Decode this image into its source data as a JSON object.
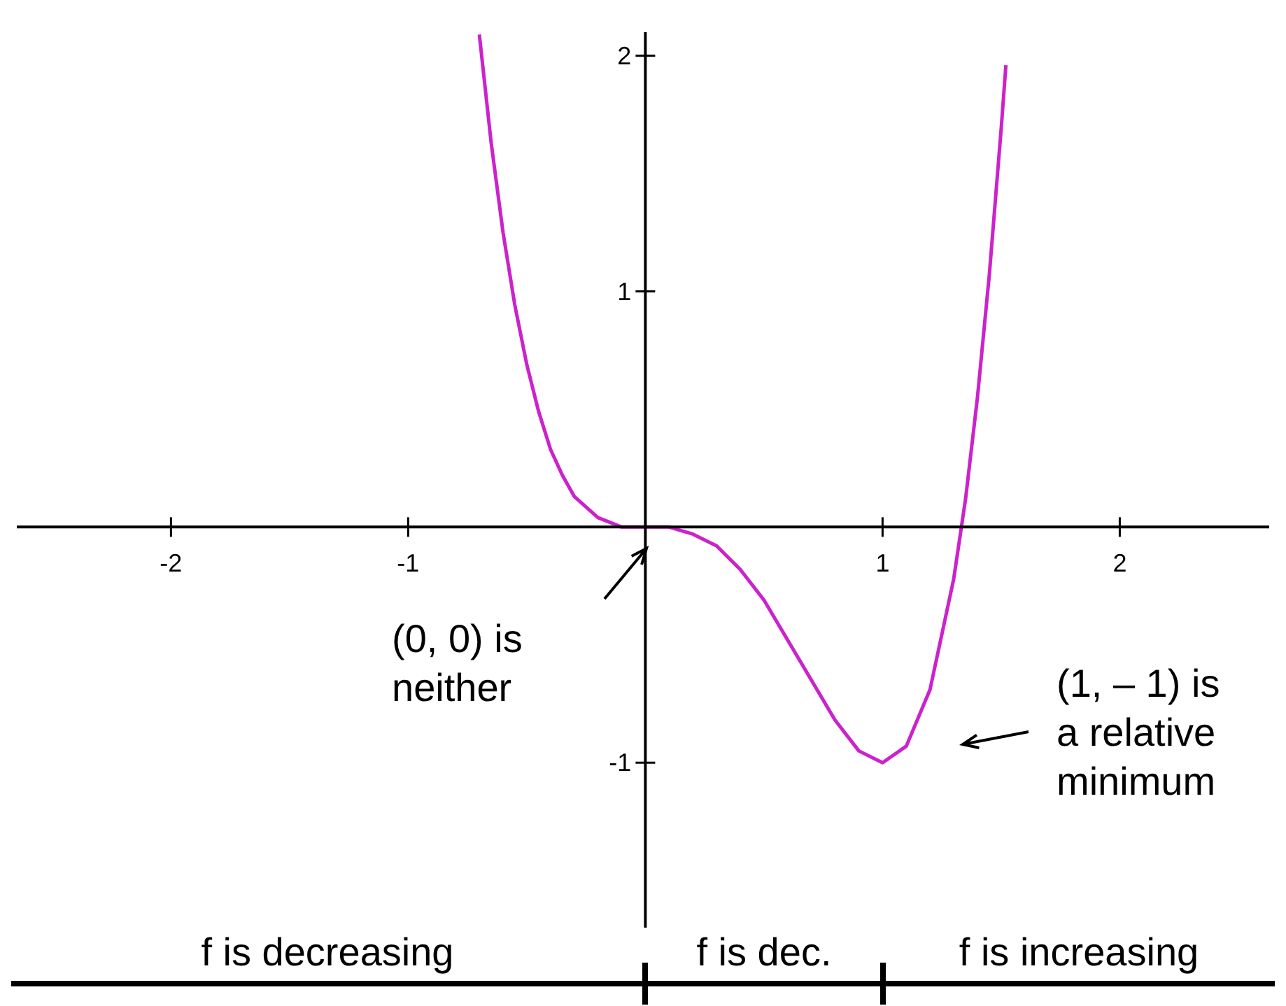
{
  "chart_data": {
    "type": "line",
    "x": [
      -0.7,
      -0.65,
      -0.6,
      -0.55,
      -0.5,
      -0.45,
      -0.4,
      -0.35,
      -0.3,
      -0.2,
      -0.1,
      0,
      0.1,
      0.2,
      0.3,
      0.4,
      0.5,
      0.6,
      0.7,
      0.8,
      0.9,
      1,
      1.1,
      1.2,
      1.3,
      1.35,
      1.4,
      1.45,
      1.5,
      1.52
    ],
    "series": [
      {
        "color": "#cc22cc",
        "values": [
          2.09,
          1.63,
          1.25,
          0.94,
          0.69,
          0.49,
          0.33,
          0.22,
          0.13,
          0.04,
          0,
          0,
          0,
          -0.03,
          -0.08,
          -0.18,
          -0.31,
          -0.48,
          -0.65,
          -0.82,
          -0.95,
          -1,
          -0.93,
          -0.69,
          -0.22,
          0.12,
          0.55,
          1.07,
          1.69,
          1.96
        ]
      }
    ],
    "xlim": [
      -2.65,
      2.63
    ],
    "ylim": [
      -1.7,
      2.1
    ],
    "xticks": [
      -2,
      -1,
      1,
      2
    ],
    "yticks": [
      -1,
      1,
      2
    ],
    "grid": false,
    "marker": "none",
    "line_style": "solid",
    "annotations": [
      "(0, 0) is\nneither",
      "(1, – 1) is\na relative\nminimum",
      "f is decreasing",
      "f is dec.",
      "f is increasing"
    ]
  }
}
